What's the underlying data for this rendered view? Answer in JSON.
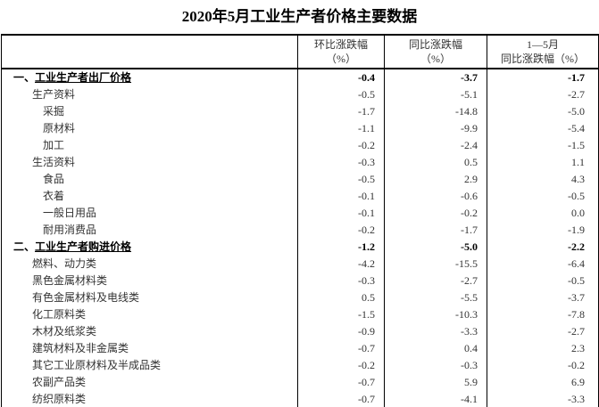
{
  "page_title": "2020年5月工业生产者价格主要数据",
  "colors": {
    "background": "#ffffff",
    "text": "#333333",
    "section_text": "#000000",
    "border": "#000000"
  },
  "table": {
    "columns": [
      {
        "line1": "",
        "line2": ""
      },
      {
        "line1": "环比涨跌幅",
        "line2": "（%）"
      },
      {
        "line1": "同比涨跌幅",
        "line2": "（%）"
      },
      {
        "line1": "1—5月",
        "line2": "同比涨跌幅（%）"
      }
    ],
    "rows": [
      {
        "prefix": "一、",
        "text": "工业生产者出厂价格",
        "indent": 0,
        "bold": true,
        "values": [
          "-0.4",
          "-3.7",
          "-1.7"
        ]
      },
      {
        "prefix": "",
        "text": "生产资料",
        "indent": 1,
        "bold": false,
        "values": [
          "-0.5",
          "-5.1",
          "-2.7"
        ]
      },
      {
        "prefix": "",
        "text": "采掘",
        "indent": 2,
        "bold": false,
        "values": [
          "-1.7",
          "-14.8",
          "-5.0"
        ]
      },
      {
        "prefix": "",
        "text": "原材料",
        "indent": 2,
        "bold": false,
        "values": [
          "-1.1",
          "-9.9",
          "-5.4"
        ]
      },
      {
        "prefix": "",
        "text": "加工",
        "indent": 2,
        "bold": false,
        "values": [
          "-0.2",
          "-2.4",
          "-1.5"
        ]
      },
      {
        "prefix": "",
        "text": "生活资料",
        "indent": 1,
        "bold": false,
        "values": [
          "-0.3",
          "0.5",
          "1.1"
        ]
      },
      {
        "prefix": "",
        "text": "食品",
        "indent": 2,
        "bold": false,
        "values": [
          "-0.5",
          "2.9",
          "4.3"
        ]
      },
      {
        "prefix": "",
        "text": "衣着",
        "indent": 2,
        "bold": false,
        "values": [
          "-0.1",
          "-0.6",
          "-0.5"
        ]
      },
      {
        "prefix": "",
        "text": "一般日用品",
        "indent": 2,
        "bold": false,
        "values": [
          "-0.1",
          "-0.2",
          "0.0"
        ]
      },
      {
        "prefix": "",
        "text": "耐用消费品",
        "indent": 2,
        "bold": false,
        "values": [
          "-0.2",
          "-1.7",
          "-1.9"
        ]
      },
      {
        "prefix": "二、",
        "text": "工业生产者购进价格",
        "indent": 0,
        "bold": true,
        "values": [
          "-1.2",
          "-5.0",
          "-2.2"
        ]
      },
      {
        "prefix": "",
        "text": "燃料、动力类",
        "indent": 1,
        "bold": false,
        "values": [
          "-4.2",
          "-15.5",
          "-6.4"
        ]
      },
      {
        "prefix": "",
        "text": "黑色金属材料类",
        "indent": 1,
        "bold": false,
        "values": [
          "-0.3",
          "-2.7",
          "-0.5"
        ]
      },
      {
        "prefix": "",
        "text": "有色金属材料及电线类",
        "indent": 1,
        "bold": false,
        "values": [
          "0.5",
          "-5.5",
          "-3.7"
        ]
      },
      {
        "prefix": "",
        "text": "化工原料类",
        "indent": 1,
        "bold": false,
        "values": [
          "-1.5",
          "-10.3",
          "-7.8"
        ]
      },
      {
        "prefix": "",
        "text": "木材及纸浆类",
        "indent": 1,
        "bold": false,
        "values": [
          "-0.9",
          "-3.3",
          "-2.7"
        ]
      },
      {
        "prefix": "",
        "text": "建筑材料及非金属类",
        "indent": 1,
        "bold": false,
        "values": [
          "-0.7",
          "0.4",
          "2.3"
        ]
      },
      {
        "prefix": "",
        "text": "其它工业原材料及半成品类",
        "indent": 1,
        "bold": false,
        "values": [
          "-0.2",
          "-0.3",
          "-0.2"
        ]
      },
      {
        "prefix": "",
        "text": "农副产品类",
        "indent": 1,
        "bold": false,
        "values": [
          "-0.7",
          "5.9",
          "6.9"
        ]
      },
      {
        "prefix": "",
        "text": "纺织原料类",
        "indent": 1,
        "bold": false,
        "values": [
          "-0.7",
          "-4.1",
          "-3.3"
        ]
      }
    ]
  }
}
